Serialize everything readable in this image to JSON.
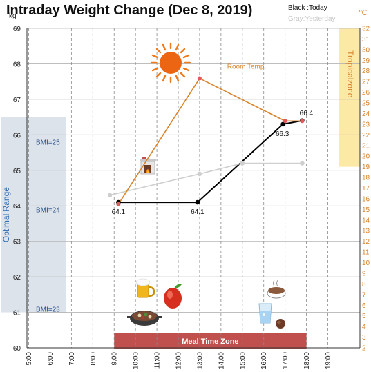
{
  "chart_data": {
    "type": "line",
    "title": "Intraday Weight Change (Dec 8, 2019)",
    "y_unit": "kg",
    "y2_unit": "℃",
    "ylim": [
      60,
      69
    ],
    "y_ticks": [
      60,
      61,
      62,
      63,
      64,
      65,
      66,
      67,
      68,
      69
    ],
    "y2lim": [
      2,
      32
    ],
    "y2_ticks": [
      2,
      3,
      4,
      5,
      6,
      7,
      8,
      9,
      10,
      11,
      12,
      13,
      14,
      15,
      16,
      17,
      18,
      19,
      20,
      21,
      22,
      23,
      24,
      25,
      26,
      27,
      28,
      29,
      30,
      31,
      32
    ],
    "xlim": [
      5,
      20
    ],
    "x_ticks": [
      5,
      6,
      7,
      8,
      9,
      10,
      11,
      12,
      13,
      14,
      15,
      16,
      17,
      18,
      19
    ],
    "x_tick_labels": [
      "5:00",
      "6:00",
      "7:00",
      "8:00",
      "9:00",
      "10:00",
      "11:00",
      "12:00",
      "13:00",
      "14:00",
      "15:00",
      "16:00",
      "17:00",
      "18:00",
      "19:00"
    ],
    "grid": true,
    "legend": {
      "today": "Black :Today",
      "yesterday": "Gray:Yesterday",
      "placement": "top-right"
    },
    "series": [
      {
        "name": "Today",
        "color": "#000000",
        "x": [
          9.2,
          12.9,
          16.9,
          17.8
        ],
        "y": [
          64.1,
          64.1,
          66.3,
          66.4
        ],
        "labels": [
          "64.1",
          "64.1",
          "66.3",
          "66.4"
        ]
      },
      {
        "name": "Yesterday",
        "color": "#cfcfcf",
        "x": [
          8.8,
          13.0,
          15.0,
          17.8
        ],
        "y": [
          64.3,
          64.9,
          65.2,
          65.2
        ]
      },
      {
        "name": "Room Temp.",
        "color": "#d9822b",
        "axis": "y2",
        "x": [
          9.2,
          13.0,
          17.0,
          17.8
        ],
        "y": [
          15.5,
          27.3,
          23.3,
          23.3
        ]
      }
    ],
    "bands": {
      "optimal": {
        "label": "Optimal Range",
        "y_from": 61.0,
        "y_to": 66.5,
        "color": "#dde3ea"
      },
      "tropical": {
        "label": "Tropicalzone",
        "y2_from": 19.0,
        "y2_to": 32.0,
        "color": "#fde9a6"
      },
      "meal": {
        "label": "Meal Time Zone",
        "x_from": 9.0,
        "x_to": 18.0,
        "color": "#c0504d"
      }
    },
    "bmi_labels": [
      {
        "text": "BMI=25",
        "y": 65.8
      },
      {
        "text": "BMI=24",
        "y": 63.9
      },
      {
        "text": "BMI=23",
        "y": 61.1
      }
    ],
    "annotations": [
      {
        "text": "Room Temp.",
        "x": 15.2,
        "y2": 28.2
      }
    ]
  }
}
